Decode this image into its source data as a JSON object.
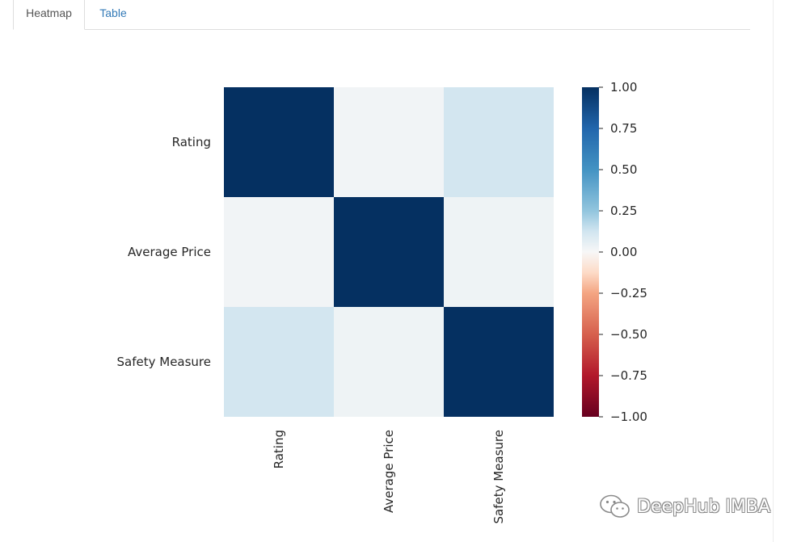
{
  "tabs": [
    {
      "label": "Heatmap",
      "active": true
    },
    {
      "label": "Table",
      "active": false
    }
  ],
  "colors": {
    "tab_active_text": "#555555",
    "tab_link": "#337ab7",
    "border": "#dddddd"
  },
  "chart_data": {
    "type": "heatmap",
    "title": "",
    "row_labels": [
      "Rating",
      "Average Price",
      "Safety Measure"
    ],
    "col_labels": [
      "Rating",
      "Average Price",
      "Safety Measure"
    ],
    "values": [
      [
        1.0,
        0.02,
        0.12
      ],
      [
        0.02,
        1.0,
        0.03
      ],
      [
        0.12,
        0.03,
        1.0
      ]
    ],
    "vmin": -1.0,
    "vmax": 1.0,
    "colormap": "RdBu",
    "colorbar_ticks": [
      "1.00",
      "0.75",
      "0.50",
      "0.25",
      "0.00",
      "−0.25",
      "−0.50",
      "−0.75",
      "−1.00"
    ],
    "colorbar_tick_values": [
      1.0,
      0.75,
      0.5,
      0.25,
      0.0,
      -0.25,
      -0.5,
      -0.75,
      -1.0
    ]
  },
  "watermark": {
    "text": "DeepHub IMBA",
    "icon": "wechat-icon"
  }
}
